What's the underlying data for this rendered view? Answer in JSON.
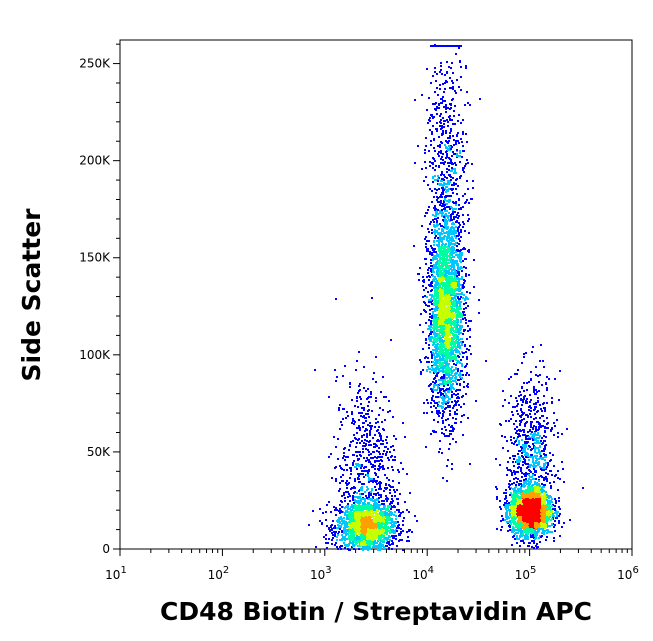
{
  "chart_data": {
    "type": "scatter",
    "title": "",
    "xlabel": "CD48 Biotin / Streptavidin APC",
    "ylabel": "Side Scatter",
    "x_scale": "log",
    "xlim": [
      10,
      1000000
    ],
    "ylim": [
      0,
      262144
    ],
    "grid": false,
    "legend": "none",
    "x_ticks": [
      {
        "value": 10,
        "base": "10",
        "exp": "1"
      },
      {
        "value": 100,
        "base": "10",
        "exp": "2"
      },
      {
        "value": 1000,
        "base": "10",
        "exp": "3"
      },
      {
        "value": 10000,
        "base": "10",
        "exp": "4"
      },
      {
        "value": 100000,
        "base": "10",
        "exp": "5"
      },
      {
        "value": 1000000,
        "base": "10",
        "exp": "6"
      }
    ],
    "y_ticks": [
      {
        "value": 0,
        "label": "0"
      },
      {
        "value": 50000,
        "label": "50K"
      },
      {
        "value": 100000,
        "label": "100K"
      },
      {
        "value": 150000,
        "label": "150K"
      },
      {
        "value": 200000,
        "label": "200K"
      },
      {
        "value": 250000,
        "label": "250K"
      }
    ],
    "density_colors": [
      "#0000ff",
      "#00c8ff",
      "#00ffa0",
      "#c8ff00",
      "#ffa000",
      "#ff0000"
    ],
    "populations": [
      {
        "center_x": 2500,
        "center_y": 12000,
        "spread_x_log10": 0.15,
        "spread_y": 7000,
        "level": "high"
      },
      {
        "center_x": 2500,
        "center_y": 40000,
        "spread_x_log10": 0.15,
        "spread_y": 25000,
        "level": "low"
      },
      {
        "center_x": 15000,
        "center_y": 120000,
        "spread_x_log10": 0.09,
        "spread_y": 25000,
        "level": "medium-high"
      },
      {
        "center_x": 15000,
        "center_y": 190000,
        "spread_x_log10": 0.1,
        "spread_y": 35000,
        "level": "low"
      },
      {
        "center_x": 100000,
        "center_y": 20000,
        "spread_x_log10": 0.1,
        "spread_y": 6000,
        "level": "very-high"
      },
      {
        "center_x": 100000,
        "center_y": 50000,
        "spread_x_log10": 0.12,
        "spread_y": 20000,
        "level": "low"
      }
    ]
  }
}
